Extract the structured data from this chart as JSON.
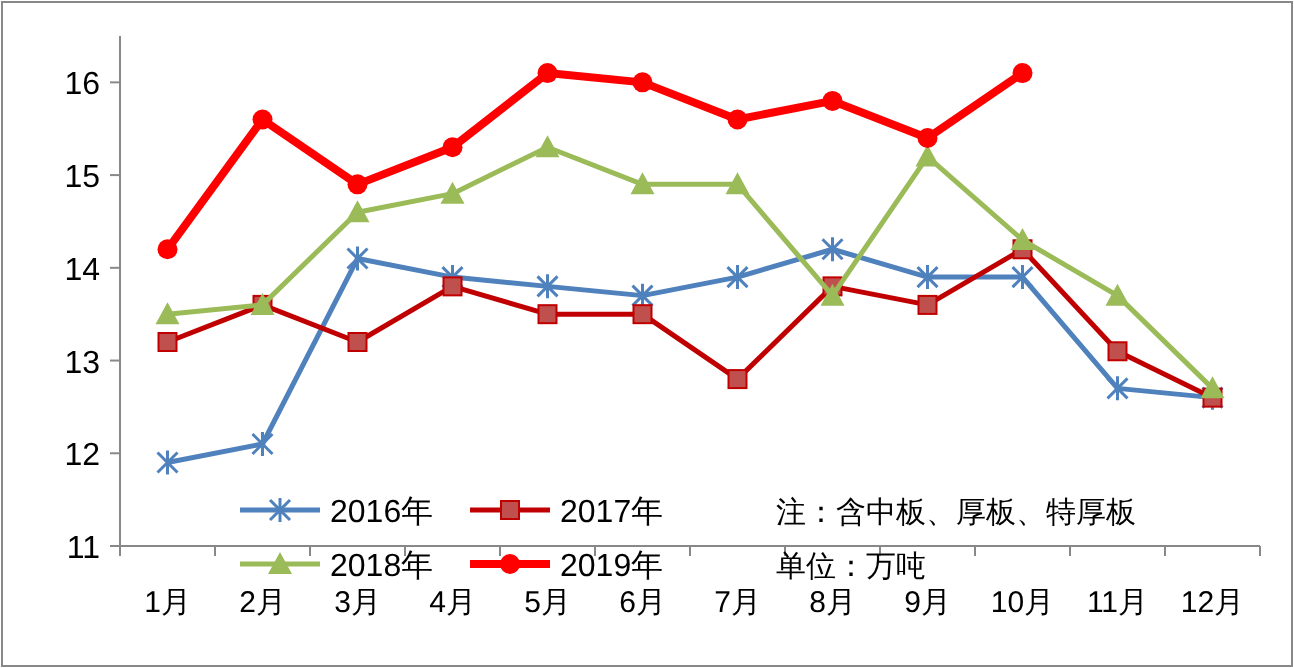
{
  "chart_data": {
    "type": "line",
    "categories": [
      "1月",
      "2月",
      "3月",
      "4月",
      "5月",
      "6月",
      "7月",
      "8月",
      "9月",
      "10月",
      "11月",
      "12月"
    ],
    "series": [
      {
        "name": "2016年",
        "color": "#4f81bd",
        "marker": "cross",
        "values": [
          11.9,
          12.1,
          14.1,
          13.9,
          13.8,
          13.7,
          13.9,
          14.2,
          13.9,
          13.9,
          12.7,
          12.6
        ]
      },
      {
        "name": "2017年",
        "color": "#c00000",
        "marker": "square",
        "values": [
          13.2,
          13.6,
          13.2,
          13.8,
          13.5,
          13.5,
          12.8,
          13.8,
          13.6,
          14.2,
          13.1,
          12.6
        ]
      },
      {
        "name": "2018年",
        "color": "#9bbb59",
        "marker": "triangle",
        "values": [
          13.5,
          13.6,
          14.6,
          14.8,
          15.3,
          14.9,
          14.9,
          13.7,
          15.2,
          14.3,
          13.7,
          12.7
        ]
      },
      {
        "name": "2019年",
        "color": "#ff0000",
        "marker": "circle",
        "values": [
          14.2,
          15.6,
          14.9,
          15.3,
          16.1,
          16.0,
          15.6,
          15.8,
          15.4,
          16.1,
          null,
          null
        ]
      }
    ],
    "ylim": [
      11,
      16.5
    ],
    "yticks": [
      11,
      12,
      13,
      14,
      15,
      16
    ],
    "grid": false,
    "legend": "bottom",
    "annotations": [
      "注：含中板、厚板、特厚板",
      "单位：万吨"
    ]
  }
}
